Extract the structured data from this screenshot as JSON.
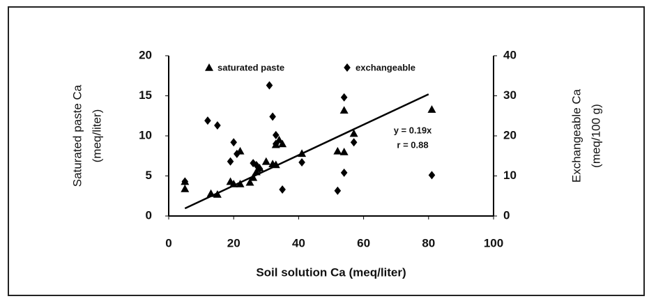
{
  "chart_data": {
    "type": "scatter",
    "xlabel": "Soil solution Ca (meq/liter)",
    "ylabel": [
      "Saturated paste Ca",
      "(meq/liter)"
    ],
    "y2label": [
      "Exchangeable Ca",
      "(meq/100 g)"
    ],
    "xlim": [
      0,
      100
    ],
    "xticks": [
      0,
      20,
      40,
      60,
      80,
      100
    ],
    "ylim": [
      0,
      20
    ],
    "yticks": [
      0,
      5,
      10,
      15,
      20
    ],
    "y2lim": [
      0,
      40
    ],
    "y2ticks": [
      0,
      10,
      20,
      30,
      40
    ],
    "series": [
      {
        "name": "saturated paste",
        "color": "#000000",
        "marker": "triangle",
        "axis": "y",
        "x": [
          5,
          5,
          13,
          15,
          19,
          20,
          22,
          22,
          25,
          26,
          27,
          28,
          30,
          32,
          33,
          33,
          34,
          35,
          41,
          52,
          54,
          54,
          57,
          81
        ],
        "values": [
          4.3,
          3.4,
          2.8,
          2.7,
          4.3,
          4,
          4,
          8.1,
          4.2,
          4.8,
          5.5,
          6,
          6.8,
          6.5,
          6.4,
          8.9,
          9.5,
          9,
          7.8,
          8.1,
          8,
          13.2,
          10.3,
          13.3
        ]
      },
      {
        "name": "exchangeable",
        "color": "#000000",
        "marker": "diamond",
        "axis": "y2",
        "x": [
          5,
          12,
          15,
          19,
          20,
          21,
          26,
          27,
          28,
          31,
          32,
          33,
          33,
          35,
          41,
          52,
          54,
          54,
          57,
          81
        ],
        "values": [
          8.6,
          23.8,
          22.6,
          13.6,
          18.4,
          15.5,
          13.2,
          12.7,
          11.8,
          32.6,
          24.8,
          20.2,
          18,
          6.6,
          13.4,
          6.3,
          29.6,
          10.8,
          18.4,
          10.2
        ]
      }
    ],
    "trendline": {
      "x": [
        5,
        80
      ],
      "values": [
        0.95,
        15.2
      ]
    },
    "annotations": [
      "y = 0.19x",
      "r = 0.88"
    ]
  }
}
